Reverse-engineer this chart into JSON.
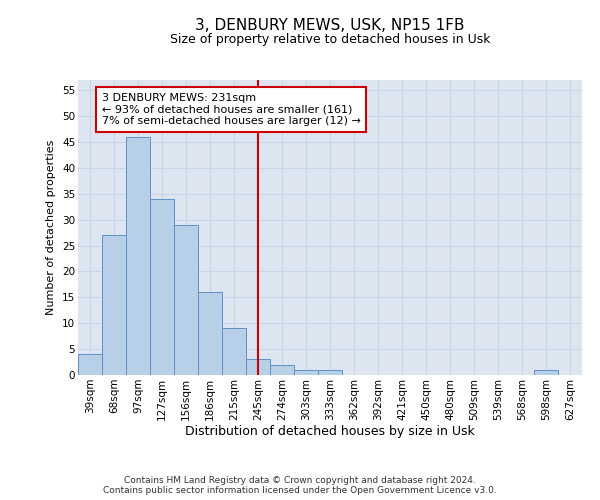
{
  "title1": "3, DENBURY MEWS, USK, NP15 1FB",
  "title2": "Size of property relative to detached houses in Usk",
  "xlabel": "Distribution of detached houses by size in Usk",
  "ylabel": "Number of detached properties",
  "bar_labels": [
    "39sqm",
    "68sqm",
    "97sqm",
    "127sqm",
    "156sqm",
    "186sqm",
    "215sqm",
    "245sqm",
    "274sqm",
    "303sqm",
    "333sqm",
    "362sqm",
    "392sqm",
    "421sqm",
    "450sqm",
    "480sqm",
    "509sqm",
    "539sqm",
    "568sqm",
    "598sqm",
    "627sqm"
  ],
  "bar_values": [
    4,
    27,
    46,
    34,
    29,
    16,
    9,
    3,
    2,
    1,
    1,
    0,
    0,
    0,
    0,
    0,
    0,
    0,
    0,
    1,
    0
  ],
  "bar_color": "#b8cfe8",
  "bar_edge_color": "#6090c8",
  "vline_x": 7,
  "vline_color": "#cc0000",
  "annotation_line1": "3 DENBURY MEWS: 231sqm",
  "annotation_line2": "← 93% of detached houses are smaller (161)",
  "annotation_line3": "7% of semi-detached houses are larger (12) →",
  "annotation_box_color": "#cc0000",
  "ylim": [
    0,
    57
  ],
  "yticks": [
    0,
    5,
    10,
    15,
    20,
    25,
    30,
    35,
    40,
    45,
    50,
    55
  ],
  "grid_color": "#c8d4e8",
  "footer1": "Contains HM Land Registry data © Crown copyright and database right 2024.",
  "footer2": "Contains public sector information licensed under the Open Government Licence v3.0.",
  "bg_color": "#dde5f0",
  "title1_fontsize": 11,
  "title2_fontsize": 9,
  "xlabel_fontsize": 9,
  "ylabel_fontsize": 8,
  "tick_fontsize": 7.5,
  "footer_fontsize": 6.5
}
